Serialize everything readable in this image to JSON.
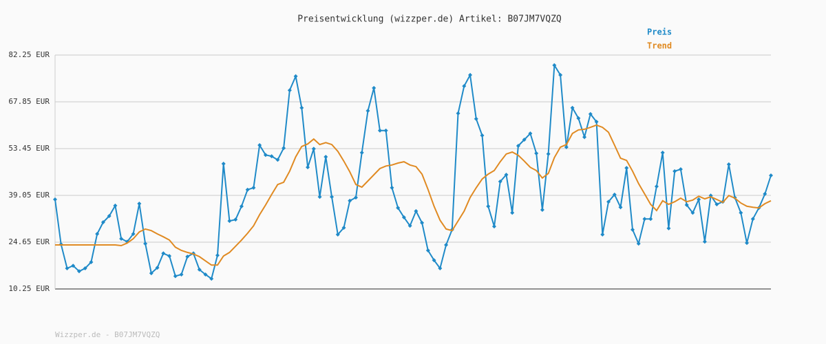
{
  "chart_data": {
    "type": "line",
    "title": "Preisentwicklung (wizzper.de) Artikel: B07JM7VQZQ",
    "footer": "Wizzper.de - B07JM7VQZQ",
    "categories": [
      null,
      null,
      null,
      null,
      null,
      null,
      null,
      null,
      null,
      null,
      null,
      null,
      null,
      null,
      null,
      null,
      null,
      null,
      null,
      null,
      null,
      null,
      null,
      null,
      null,
      null,
      null,
      null,
      null,
      null,
      null,
      null,
      null,
      null,
      null,
      null,
      null,
      null,
      null,
      null,
      null,
      null,
      null,
      null,
      null,
      null,
      null,
      null,
      null,
      null,
      null,
      null,
      null,
      null,
      null,
      null,
      null,
      null,
      null,
      null,
      null,
      null,
      null,
      null,
      null,
      null,
      null,
      null,
      null,
      null,
      null,
      null,
      null,
      null,
      null,
      null,
      null,
      null,
      null,
      null,
      null,
      null,
      null,
      null,
      null,
      null,
      null,
      null,
      null,
      null,
      null,
      null,
      null,
      null,
      null,
      null,
      null,
      null,
      null,
      null,
      null,
      null,
      null,
      null,
      null,
      null,
      null,
      null,
      null,
      null,
      null,
      null,
      null,
      null,
      null,
      null,
      null,
      null,
      null,
      null
    ],
    "series": [
      {
        "name": "Preis",
        "color": "#1f8ac8",
        "markers": true,
        "values": [
          37.8,
          24.0,
          16.6,
          17.4,
          15.7,
          16.6,
          18.5,
          27.2,
          30.8,
          32.7,
          35.9,
          25.7,
          24.8,
          27.2,
          36.5,
          24.2,
          15.1,
          16.8,
          21.2,
          20.4,
          14.2,
          14.7,
          20.2,
          21.2,
          16.2,
          14.7,
          13.4,
          20.6,
          48.8,
          31.2,
          31.6,
          35.7,
          40.8,
          41.4,
          54.5,
          51.5,
          51.1,
          50.0,
          53.6,
          71.4,
          75.7,
          66.0,
          47.7,
          53.4,
          38.6,
          50.9,
          38.6,
          27.0,
          29.1,
          37.4,
          38.4,
          52.2,
          65.1,
          72.1,
          59.0,
          59.0,
          41.4,
          35.2,
          32.3,
          29.7,
          34.2,
          30.6,
          22.1,
          19.1,
          16.6,
          23.8,
          28.5,
          64.3,
          72.7,
          76.1,
          62.6,
          57.5,
          35.7,
          29.5,
          43.3,
          45.4,
          33.7,
          54.3,
          56.2,
          58.1,
          52.0,
          34.6,
          51.8,
          79.1,
          76.1,
          53.9,
          66.0,
          62.8,
          57.0,
          64.1,
          61.7,
          27.0,
          37.1,
          39.3,
          35.4,
          47.5,
          28.5,
          24.2,
          31.8,
          31.8,
          41.8,
          52.2,
          28.9,
          46.5,
          47.1,
          36.1,
          33.7,
          37.8,
          24.8,
          39.0,
          36.3,
          37.1,
          48.6,
          38.4,
          33.7,
          24.4,
          31.8,
          35.2,
          39.5,
          45.2
        ]
      },
      {
        "name": "Trend",
        "color": "#e08a22",
        "markers": false,
        "values": [
          23.8,
          23.8,
          23.8,
          23.8,
          23.8,
          23.8,
          23.8,
          23.8,
          23.8,
          23.8,
          23.8,
          23.6,
          24.4,
          25.7,
          27.8,
          28.7,
          28.2,
          27.2,
          26.3,
          25.3,
          23.1,
          22.1,
          21.5,
          21.0,
          20.2,
          18.9,
          17.6,
          17.6,
          20.4,
          21.5,
          23.4,
          25.3,
          27.4,
          29.7,
          33.1,
          36.1,
          39.3,
          42.4,
          43.1,
          46.5,
          50.9,
          54.1,
          54.9,
          56.4,
          54.7,
          55.3,
          54.7,
          52.6,
          49.6,
          46.3,
          42.4,
          41.6,
          43.5,
          45.4,
          47.3,
          48.1,
          48.4,
          49.0,
          49.4,
          48.4,
          47.9,
          45.6,
          40.9,
          35.7,
          31.4,
          28.7,
          28.2,
          31.2,
          34.2,
          38.4,
          41.4,
          44.1,
          45.6,
          46.7,
          49.4,
          51.8,
          52.4,
          51.4,
          49.6,
          47.7,
          46.7,
          44.4,
          45.8,
          50.7,
          53.9,
          54.7,
          58.1,
          59.2,
          59.4,
          60.0,
          60.7,
          60.0,
          58.5,
          54.5,
          50.5,
          49.8,
          46.5,
          42.7,
          39.5,
          36.3,
          34.4,
          37.4,
          36.3,
          37.1,
          38.2,
          37.1,
          37.6,
          38.8,
          38.0,
          38.6,
          37.8,
          36.9,
          39.0,
          38.2,
          36.7,
          35.7,
          35.4,
          35.2,
          36.5,
          37.4
        ]
      }
    ],
    "ylim": [
      10.25,
      82.25
    ],
    "yticks": [
      {
        "value": 10.25,
        "label": "10.25 EUR"
      },
      {
        "value": 24.65,
        "label": "24.65 EUR"
      },
      {
        "value": 39.05,
        "label": "39.05 EUR"
      },
      {
        "value": 53.45,
        "label": "53.45 EUR"
      },
      {
        "value": 67.85,
        "label": "67.85 EUR"
      },
      {
        "value": 82.25,
        "label": "82.25 EUR"
      }
    ],
    "grid": true
  }
}
